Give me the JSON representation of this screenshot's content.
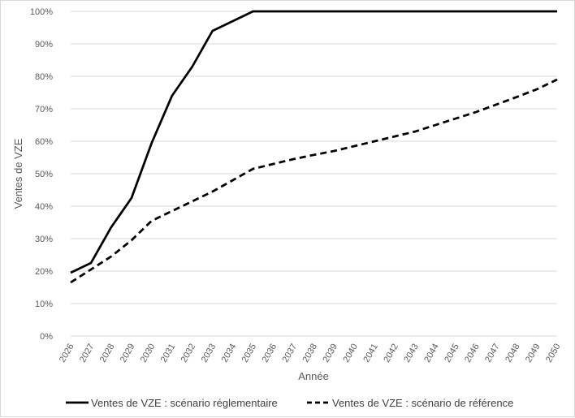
{
  "chart_data": {
    "type": "line",
    "title": "",
    "xlabel": "Année",
    "ylabel": "Ventes de VZE",
    "ylim": [
      0,
      100
    ],
    "y_ticks": [
      0,
      10,
      20,
      30,
      40,
      50,
      60,
      70,
      80,
      90,
      100
    ],
    "y_tick_labels": [
      "0%",
      "10%",
      "20%",
      "30%",
      "40%",
      "50%",
      "60%",
      "70%",
      "80%",
      "90%",
      "100%"
    ],
    "grid": "horizontal",
    "legend_position": "bottom",
    "categories": [
      "2026",
      "2027",
      "2028",
      "2029",
      "2030",
      "2031",
      "2032",
      "2033",
      "2034",
      "2035",
      "2036",
      "2037",
      "2038",
      "2039",
      "2040",
      "2041",
      "2042",
      "2043",
      "2044",
      "2045",
      "2046",
      "2047",
      "2048",
      "2049",
      "2050"
    ],
    "series": [
      {
        "name": "Ventes de VZE : scénario réglementaire",
        "style": "solid",
        "color": "#000000",
        "values": [
          19.5,
          22.5,
          33.5,
          42.5,
          59.5,
          74,
          83,
          94,
          97,
          100,
          100,
          100,
          100,
          100,
          100,
          100,
          100,
          100,
          100,
          100,
          100,
          100,
          100,
          100,
          100
        ]
      },
      {
        "name": "Ventes de VZE : scénario de référence",
        "style": "dashed",
        "color": "#000000",
        "values": [
          16.5,
          20.5,
          24.5,
          29.5,
          35.5,
          38.5,
          41.5,
          44.5,
          48,
          51.5,
          53,
          54.5,
          55.8,
          57,
          58.5,
          60,
          61.5,
          63,
          65,
          67,
          69,
          71.3,
          73.6,
          76,
          79
        ]
      }
    ]
  }
}
